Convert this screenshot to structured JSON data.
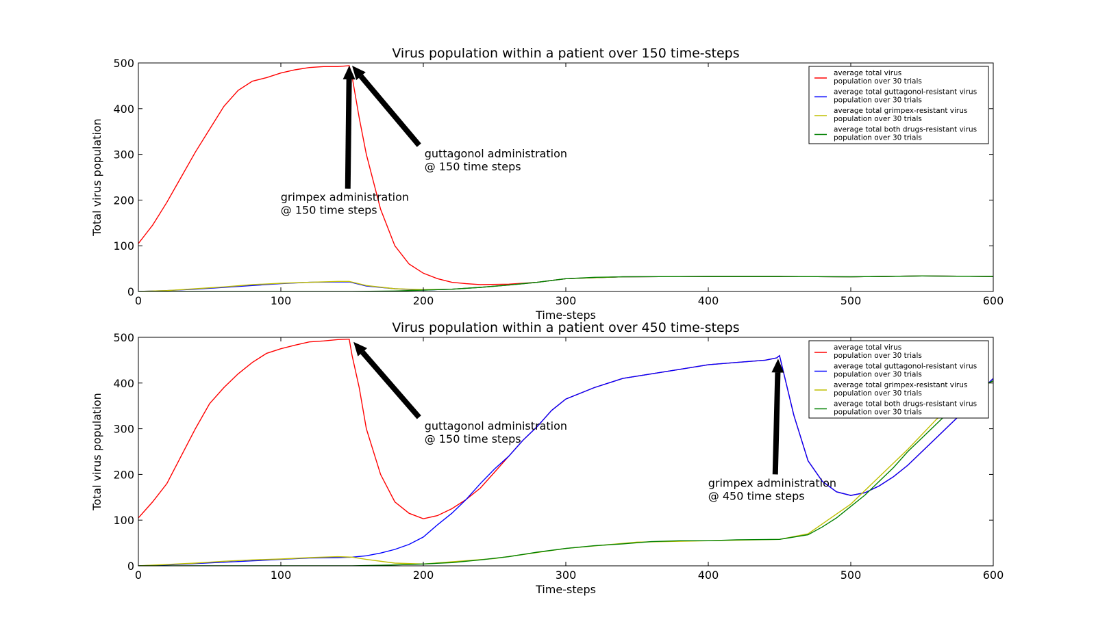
{
  "chart_data": [
    {
      "type": "line",
      "title": "Virus population within a patient over 150 time-steps",
      "xlabel": "Time-steps",
      "ylabel": "Total virus population",
      "xlim": [
        0,
        600
      ],
      "ylim": [
        0,
        500
      ],
      "xticks": [
        "0",
        "100",
        "200",
        "300",
        "400",
        "500",
        "600"
      ],
      "yticks": [
        "0",
        "100",
        "200",
        "300",
        "400",
        "500"
      ],
      "legend_position": "top-right",
      "series": [
        {
          "name": "average total virus population over 30 trials",
          "legend_lines": [
            "average total virus",
            "population over 30 trials"
          ],
          "color": "#ff0000",
          "x": [
            0,
            5,
            10,
            20,
            30,
            40,
            50,
            60,
            70,
            80,
            90,
            100,
            110,
            120,
            130,
            140,
            148,
            150,
            155,
            160,
            170,
            180,
            190,
            200,
            210,
            220,
            230,
            240,
            260,
            280,
            300,
            340,
            400,
            450,
            500,
            550,
            600
          ],
          "y": [
            105,
            125,
            145,
            195,
            250,
            305,
            355,
            405,
            440,
            460,
            468,
            478,
            485,
            490,
            492,
            492,
            494,
            470,
            380,
            300,
            180,
            100,
            60,
            40,
            28,
            20,
            17,
            15,
            16,
            20,
            28,
            32,
            33,
            33,
            32,
            34,
            33
          ]
        },
        {
          "name": "average total guttagonol-resistant virus population over 30 trials",
          "legend_lines": [
            "average total guttagonol-resistant virus",
            "population over 30 trials"
          ],
          "color": "#0000ff",
          "x": [
            0,
            20,
            40,
            60,
            80,
            100,
            120,
            140,
            148,
            160,
            180,
            200,
            220,
            240,
            260,
            280,
            300,
            340,
            400,
            450,
            500,
            550,
            600
          ],
          "y": [
            0,
            2,
            5,
            9,
            13,
            17,
            20,
            21,
            21,
            12,
            6,
            3,
            5,
            9,
            14,
            20,
            28,
            32,
            33,
            33,
            32,
            34,
            33
          ]
        },
        {
          "name": "average total grimpex-resistant virus population over 30 trials",
          "legend_lines": [
            "average total grimpex-resistant virus",
            "population over 30 trials"
          ],
          "color": "#bfbf00",
          "x": [
            0,
            20,
            40,
            60,
            80,
            100,
            120,
            140,
            148,
            160,
            180,
            200,
            220,
            240,
            260,
            280,
            300,
            340,
            400,
            450,
            500,
            550,
            600
          ],
          "y": [
            0,
            2,
            6,
            10,
            15,
            18,
            20,
            22,
            22,
            13,
            6,
            4,
            5,
            9,
            14,
            20,
            28,
            32,
            33,
            33,
            32,
            34,
            33
          ]
        },
        {
          "name": "average total both drugs-resistant virus population over 30 trials",
          "legend_lines": [
            "average total both drugs-resistant virus",
            "population over 30 trials"
          ],
          "color": "#008000",
          "x": [
            0,
            50,
            100,
            150,
            180,
            200,
            220,
            240,
            260,
            280,
            300,
            320,
            340,
            400,
            450,
            500,
            550,
            600
          ],
          "y": [
            0,
            0,
            0,
            0,
            1,
            3,
            5,
            9,
            14,
            20,
            28,
            31,
            32,
            33,
            33,
            32,
            34,
            33
          ]
        }
      ],
      "annotations": [
        {
          "lines": [
            "guttagonol administration",
            "@ 150 time steps"
          ],
          "arrow_from": [
            197,
            320
          ],
          "arrow_to": [
            150,
            494
          ]
        },
        {
          "lines": [
            "grimpex administration",
            "@ 150 time steps"
          ],
          "arrow_from": [
            147,
            225
          ],
          "arrow_to": [
            148,
            494
          ]
        }
      ]
    },
    {
      "type": "line",
      "title": "Virus population within a patient over 450 time-steps",
      "xlabel": "Time-steps",
      "ylabel": "Total virus population",
      "xlim": [
        0,
        600
      ],
      "ylim": [
        0,
        500
      ],
      "xticks": [
        "0",
        "100",
        "200",
        "300",
        "400",
        "500",
        "600"
      ],
      "yticks": [
        "0",
        "100",
        "200",
        "300",
        "400",
        "500"
      ],
      "legend_position": "top-right",
      "series": [
        {
          "name": "average total virus population over 30 trials",
          "legend_lines": [
            "average total virus",
            "population over 30 trials"
          ],
          "color": "#ff0000",
          "x": [
            0,
            10,
            20,
            30,
            40,
            50,
            60,
            70,
            80,
            90,
            100,
            110,
            120,
            130,
            140,
            148,
            150,
            155,
            160,
            170,
            180,
            190,
            200,
            210,
            220,
            230,
            240,
            250,
            260,
            270,
            280,
            290,
            300,
            320,
            340,
            360,
            380,
            400,
            420,
            440,
            448,
            450,
            460,
            470,
            480,
            490,
            500,
            510,
            520,
            530,
            540,
            550,
            560,
            570,
            580,
            590,
            600
          ],
          "y": [
            105,
            140,
            180,
            240,
            300,
            355,
            390,
            420,
            445,
            465,
            475,
            483,
            490,
            492,
            495,
            496,
            460,
            390,
            300,
            200,
            140,
            115,
            103,
            110,
            125,
            145,
            170,
            205,
            240,
            275,
            305,
            340,
            365,
            390,
            410,
            420,
            430,
            440,
            445,
            450,
            455,
            460,
            330,
            230,
            185,
            162,
            154,
            160,
            175,
            195,
            220,
            250,
            280,
            310,
            340,
            380,
            410
          ]
        },
        {
          "name": "average total guttagonol-resistant virus population over 30 trials",
          "legend_lines": [
            "average total guttagonol-resistant virus",
            "population over 30 trials"
          ],
          "color": "#0000ff",
          "x": [
            0,
            20,
            40,
            60,
            80,
            100,
            120,
            140,
            150,
            160,
            170,
            180,
            190,
            200,
            210,
            220,
            230,
            240,
            250,
            260,
            270,
            280,
            290,
            300,
            320,
            340,
            360,
            380,
            400,
            420,
            440,
            448,
            450,
            460,
            470,
            480,
            490,
            500,
            510,
            520,
            530,
            540,
            550,
            560,
            570,
            580,
            590,
            600
          ],
          "y": [
            0,
            2,
            5,
            8,
            11,
            14,
            17,
            18,
            19,
            22,
            28,
            36,
            47,
            63,
            90,
            115,
            145,
            180,
            212,
            240,
            275,
            305,
            340,
            365,
            390,
            410,
            420,
            430,
            440,
            445,
            450,
            455,
            460,
            330,
            230,
            185,
            162,
            154,
            160,
            175,
            195,
            220,
            250,
            280,
            310,
            340,
            380,
            410
          ]
        },
        {
          "name": "average total grimpex-resistant virus population over 30 trials",
          "legend_lines": [
            "average total grimpex-resistant virus",
            "population over 30 trials"
          ],
          "color": "#bfbf00",
          "x": [
            0,
            20,
            40,
            60,
            80,
            100,
            120,
            140,
            150,
            160,
            180,
            200,
            250,
            300,
            350,
            400,
            450,
            470,
            500,
            520,
            540,
            560,
            580,
            600
          ],
          "y": [
            0,
            3,
            6,
            10,
            13,
            15,
            18,
            20,
            19,
            14,
            6,
            4,
            16,
            38,
            52,
            55,
            58,
            70,
            135,
            195,
            255,
            320,
            370,
            405
          ]
        },
        {
          "name": "average total both drugs-resistant virus population over 30 trials",
          "legend_lines": [
            "average total both drugs-resistant virus",
            "population over 30 trials"
          ],
          "color": "#008000",
          "x": [
            0,
            50,
            100,
            150,
            180,
            200,
            220,
            240,
            260,
            280,
            300,
            320,
            340,
            360,
            380,
            400,
            420,
            450,
            470,
            480,
            490,
            500,
            510,
            520,
            530,
            540,
            550,
            560,
            570,
            580,
            590,
            600
          ],
          "y": [
            0,
            0,
            0,
            0,
            2,
            4,
            7,
            13,
            20,
            30,
            38,
            44,
            48,
            53,
            55,
            55,
            57,
            58,
            68,
            85,
            105,
            130,
            155,
            185,
            215,
            250,
            280,
            310,
            340,
            370,
            390,
            405
          ]
        }
      ],
      "annotations": [
        {
          "lines": [
            "guttagonol administration",
            "@ 150 time steps"
          ],
          "arrow_from": [
            197,
            325
          ],
          "arrow_to": [
            151,
            490
          ]
        },
        {
          "lines": [
            "grimpex administration",
            "@ 450 time steps"
          ],
          "arrow_from": [
            447,
            200
          ],
          "arrow_to": [
            449,
            453
          ]
        }
      ]
    }
  ]
}
